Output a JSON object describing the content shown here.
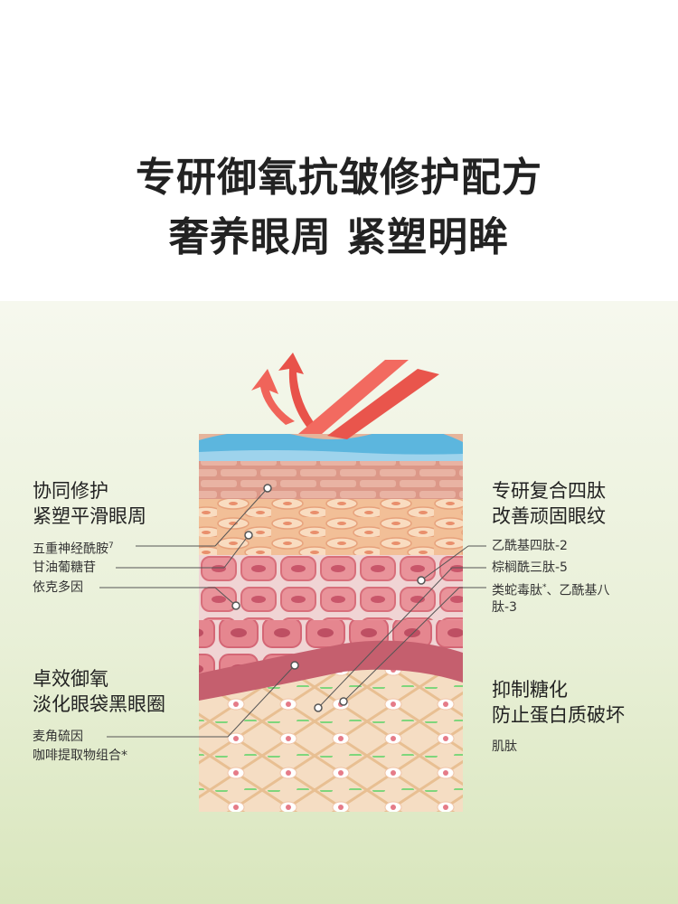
{
  "title": {
    "line1": "专研御氧抗皱修护配方",
    "line2": "奢养眼周 紧塑明眸"
  },
  "left": {
    "group1": {
      "heading1": "协同修护",
      "heading2": "紧塑平滑眼周",
      "items": [
        "五重神经酰胺",
        "甘油葡糖苷",
        "依克多因"
      ],
      "item1_sup": "7"
    },
    "group2": {
      "heading1": "卓效御氧",
      "heading2": "淡化眼袋黑眼圈",
      "items": [
        "麦角硫因",
        "咖啡提取物组合*"
      ]
    }
  },
  "right": {
    "group1": {
      "heading1": "专研复合四肽",
      "heading2": "改善顽固眼纹",
      "items": [
        "乙酰基四肽-2",
        "棕榈酰三肽-5",
        "类蛇毒肽",
        "、乙酰基八",
        "肽-3"
      ],
      "item3_sup": "*"
    },
    "group2": {
      "heading1": "抑制糖化",
      "heading2": "防止蛋白质破坏",
      "items": [
        "肌肽"
      ]
    }
  },
  "colors": {
    "arrow": "#f0645a",
    "surface": "#5fb8df",
    "brick": "#d98f7e",
    "cell_layer": "#f4c7a6",
    "round_cells": "#e9939a",
    "dermis": "#f3dcc2",
    "fiber_green": "#7fd67c"
  }
}
